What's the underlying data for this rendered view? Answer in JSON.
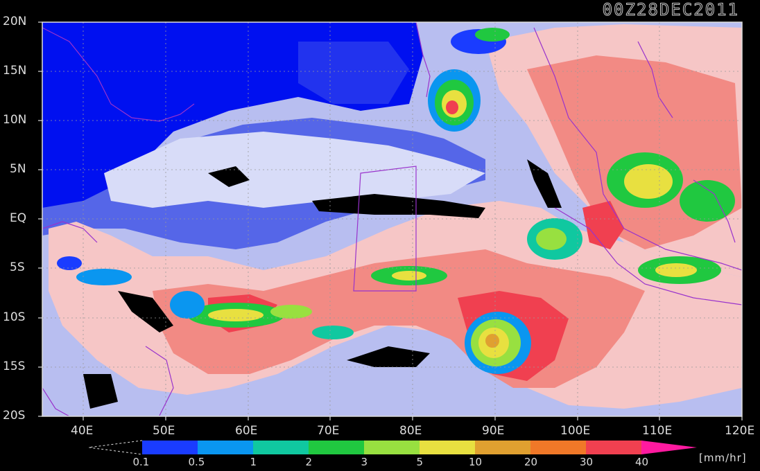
{
  "map": {
    "title": "00Z28DEC2011",
    "lat_labels": [
      "20N",
      "15N",
      "10N",
      "5N",
      "EQ",
      "5S",
      "10S",
      "15S",
      "20S"
    ],
    "lon_labels": [
      "40E",
      "50E",
      "60E",
      "70E",
      "80E",
      "90E",
      "100E",
      "110E",
      "120E"
    ],
    "lon_range": [
      35,
      120
    ],
    "lat_range": [
      -20,
      20
    ],
    "colors": {
      "background": "#000000",
      "border_line": "#9933cc",
      "grid": "#888888"
    }
  },
  "legend": {
    "levels": [
      "0.1",
      "0.5",
      "1",
      "2",
      "3",
      "5",
      "10",
      "20",
      "30",
      "40"
    ],
    "colors": [
      "#1a3cff",
      "#0a96f0",
      "#10c8a0",
      "#20c840",
      "#98e040",
      "#e8e040",
      "#e0a030",
      "#f07828",
      "#f04050",
      "#ff1aa0"
    ],
    "unit": "[mm/hr]"
  }
}
